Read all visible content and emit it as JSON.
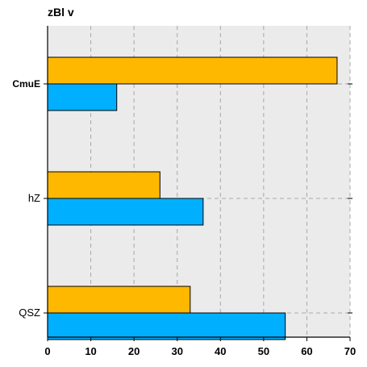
{
  "chart_data": {
    "type": "bar",
    "orientation": "horizontal",
    "title": "zBl v",
    "xlabel": "",
    "ylabel": "",
    "categories": [
      "CmuE",
      "hZ",
      "QSZ"
    ],
    "category_bold": [
      true,
      false,
      false
    ],
    "series": [
      {
        "values": [
          67,
          26,
          33
        ],
        "color": "#FFB800"
      },
      {
        "values": [
          16,
          36,
          55
        ],
        "color": "#00B0FF"
      }
    ],
    "xlim": [
      0,
      70
    ],
    "xticks": [
      0,
      10,
      20,
      30,
      40,
      50,
      60,
      70
    ],
    "grid": true,
    "grid_style": "dashed",
    "plot_background": "#EBEBEB"
  }
}
